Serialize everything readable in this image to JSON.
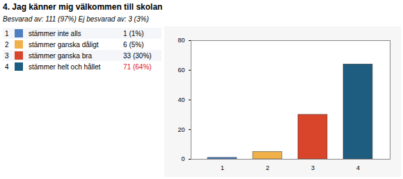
{
  "chart_data": {
    "type": "bar",
    "title": "4. Jag känner mig välkommen till skolan",
    "subtitle": "Besvarad av: 111 (97%) Ej besvarad av: 3 (3%)",
    "categories": [
      "1",
      "2",
      "3",
      "4"
    ],
    "values": [
      1,
      5,
      30,
      64
    ],
    "colors": [
      "#4f7fc0",
      "#f0b04a",
      "#d9452a",
      "#1f5d80"
    ],
    "ylim": [
      0,
      80
    ],
    "yticks": [
      0,
      20,
      40,
      60,
      80
    ],
    "grid": false
  },
  "table": {
    "rows": [
      {
        "number": "1",
        "label": "stämmer inte alls",
        "count": "1 (1%)"
      },
      {
        "number": "2",
        "label": "stämmer ganska dåligt",
        "count": "6 (5%)"
      },
      {
        "number": "3",
        "label": "stämmer ganska bra",
        "count": "33 (30%)"
      },
      {
        "number": "4",
        "label": "stämmer helt och hållet",
        "count": "71 (64%)"
      }
    ]
  }
}
